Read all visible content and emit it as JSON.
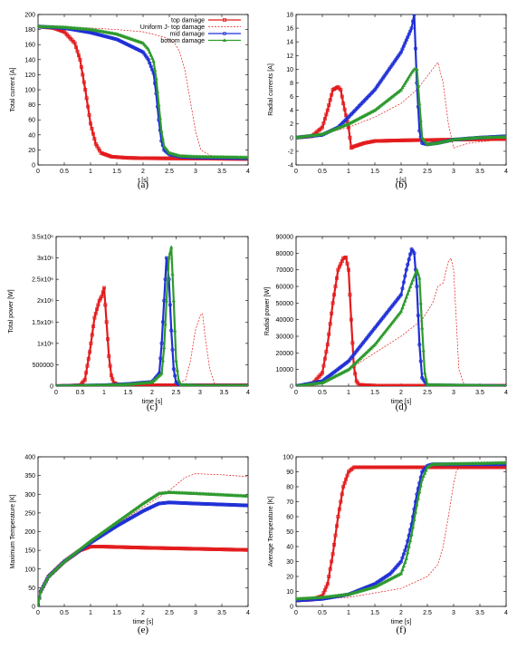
{
  "colors": {
    "top": "#e31a1c",
    "uniform": "#e31a1c",
    "mid": "#1f2fd6",
    "bottom": "#2e9a2e"
  },
  "legend": [
    {
      "key": "top",
      "label": "top damage",
      "style": "solid",
      "marker": "square"
    },
    {
      "key": "uniform",
      "label": "Uniform J- top damage",
      "style": "dashed",
      "marker": "none"
    },
    {
      "key": "mid",
      "label": "mid damage",
      "style": "solid",
      "marker": "circle"
    },
    {
      "key": "bottom",
      "label": "bottom damage",
      "style": "solid",
      "marker": "triangle"
    }
  ],
  "chart_data": [
    {
      "id": "a",
      "type": "line",
      "caption": "(a)",
      "xlabel": "t [s]",
      "ylabel": "Total current [A]",
      "xlim": [
        0,
        4
      ],
      "ylim": [
        0,
        200
      ],
      "xticks": [
        0,
        0.5,
        1,
        1.5,
        2,
        2.5,
        3,
        3.5,
        4
      ],
      "xtick_labels": [
        "0",
        "0.5",
        "1",
        "1.5",
        "2",
        "2.5",
        "3",
        "3.5",
        "4"
      ],
      "yticks": [
        0,
        20,
        40,
        60,
        80,
        100,
        120,
        140,
        160,
        180,
        200
      ],
      "ytick_labels": [
        "0",
        "20",
        "40",
        "60",
        "80",
        "100",
        "120",
        "140",
        "160",
        "180",
        "200"
      ],
      "legend_position": "top-right",
      "series": [
        {
          "key": "top",
          "x": [
            0,
            0.3,
            0.5,
            0.7,
            0.8,
            0.9,
            1.0,
            1.1,
            1.2,
            1.4,
            1.7,
            2.0,
            3.0,
            4.0
          ],
          "y": [
            184,
            182,
            177,
            162,
            140,
            100,
            55,
            28,
            16,
            11,
            9.5,
            9,
            8.5,
            8
          ]
        },
        {
          "key": "uniform",
          "x": [
            0,
            0.5,
            1,
            1.5,
            2,
            2.4,
            2.6,
            2.7,
            2.8,
            2.9,
            3.0,
            3.1,
            3.3,
            3.6,
            4.0
          ],
          "y": [
            184,
            183,
            182,
            180,
            177,
            170,
            162,
            150,
            125,
            85,
            45,
            20,
            12,
            10,
            9
          ]
        },
        {
          "key": "mid",
          "x": [
            0,
            0.5,
            1,
            1.5,
            2.0,
            2.1,
            2.2,
            2.25,
            2.3,
            2.35,
            2.4,
            2.5,
            2.7,
            3.0,
            4.0
          ],
          "y": [
            184,
            182,
            176,
            167,
            150,
            140,
            122,
            95,
            60,
            32,
            20,
            14,
            11,
            10,
            9
          ]
        },
        {
          "key": "bottom",
          "x": [
            0,
            0.5,
            1,
            1.5,
            2.0,
            2.1,
            2.2,
            2.25,
            2.3,
            2.35,
            2.4,
            2.5,
            2.7,
            3.0,
            4.0
          ],
          "y": [
            184,
            183,
            180,
            174,
            162,
            154,
            138,
            115,
            80,
            45,
            25,
            16,
            12,
            11,
            10
          ]
        }
      ]
    },
    {
      "id": "b",
      "type": "line",
      "caption": "(b)",
      "xlabel": "t [s]",
      "ylabel": "Radial currents [A]",
      "xlim": [
        0,
        4
      ],
      "ylim": [
        -4,
        18
      ],
      "xticks": [
        0,
        0.5,
        1,
        1.5,
        2,
        2.5,
        3,
        3.5,
        4
      ],
      "xtick_labels": [
        "0",
        "0.5",
        "1",
        "1.5",
        "2",
        "2.5",
        "3",
        "3.5",
        "4"
      ],
      "yticks": [
        -4,
        -2,
        0,
        2,
        4,
        6,
        8,
        10,
        12,
        14,
        16,
        18
      ],
      "ytick_labels": [
        "-4",
        "-2",
        "0",
        "2",
        "4",
        "6",
        "8",
        "10",
        "12",
        "14",
        "16",
        "18"
      ],
      "series": [
        {
          "key": "top",
          "x": [
            0,
            0.3,
            0.5,
            0.6,
            0.7,
            0.8,
            0.85,
            0.9,
            1.0,
            1.05,
            1.1,
            1.3,
            1.5,
            2,
            3,
            4
          ],
          "y": [
            0,
            0.2,
            1.5,
            4,
            7,
            7.4,
            7,
            5,
            1.5,
            -1.5,
            -1.3,
            -0.8,
            -0.5,
            -0.4,
            -0.3,
            -0.2
          ]
        },
        {
          "key": "uniform",
          "x": [
            0,
            0.5,
            1,
            1.5,
            2,
            2.3,
            2.5,
            2.7,
            2.8,
            2.9,
            3.0,
            3.3,
            4.0
          ],
          "y": [
            0,
            0.5,
            1.5,
            3,
            5,
            7,
            9,
            11,
            8,
            2,
            -1.5,
            -0.8,
            -0.2
          ]
        },
        {
          "key": "mid",
          "x": [
            0,
            0.5,
            0.8,
            1.0,
            1.5,
            2.0,
            2.2,
            2.25,
            2.3,
            2.35,
            2.4,
            2.5,
            2.7,
            3.0,
            3.5,
            4.0
          ],
          "y": [
            0,
            0.4,
            1.5,
            3,
            7,
            12.5,
            16,
            18,
            8,
            1,
            -0.8,
            -1,
            -0.8,
            -0.3,
            0,
            0.2
          ]
        },
        {
          "key": "bottom",
          "x": [
            0,
            0.5,
            1.0,
            1.5,
            2.0,
            2.2,
            2.25,
            2.3,
            2.35,
            2.4,
            2.5,
            2.7,
            3.0,
            3.5,
            4.0
          ],
          "y": [
            0,
            0.5,
            2,
            4,
            7,
            9.5,
            10,
            10,
            5,
            0,
            -1,
            -0.8,
            -0.3,
            0,
            0.1
          ]
        }
      ]
    },
    {
      "id": "c",
      "type": "line",
      "caption": "(c)",
      "xlabel": "time [s]",
      "ylabel": "Total power [W]",
      "xlim": [
        0,
        4
      ],
      "ylim": [
        0,
        3500000
      ],
      "xticks": [
        0,
        0.5,
        1,
        1.5,
        2,
        2.5,
        3,
        3.5,
        4
      ],
      "xtick_labels": [
        "0",
        "0.5",
        "1",
        "1.5",
        "2",
        "2.5",
        "3",
        "3.5",
        "4"
      ],
      "yticks": [
        0,
        500000,
        1000000,
        1500000,
        2000000,
        2500000,
        3000000,
        3500000
      ],
      "ytick_labels": [
        "0",
        "500000",
        "1x10⁶",
        "1.5x10⁶",
        "2x10⁶",
        "2.5x10⁶",
        "3x10⁶",
        "3.5x10⁶"
      ],
      "series": [
        {
          "key": "top",
          "x": [
            0,
            0.5,
            0.6,
            0.7,
            0.8,
            0.9,
            0.95,
            1.0,
            1.05,
            1.1,
            1.15,
            1.2,
            1.3,
            1.5,
            2,
            4
          ],
          "y": [
            0,
            20000,
            150000,
            800000,
            1600000,
            2000000,
            2100000,
            2300000,
            1500000,
            700000,
            250000,
            80000,
            30000,
            20000,
            20000,
            20000
          ]
        },
        {
          "key": "uniform",
          "x": [
            0,
            1.5,
            2.5,
            2.7,
            2.8,
            2.9,
            3.0,
            3.05,
            3.1,
            3.2,
            3.3,
            3.5,
            4.0
          ],
          "y": [
            0,
            10000,
            30000,
            150000,
            600000,
            1300000,
            1650000,
            1700000,
            1200000,
            400000,
            60000,
            20000,
            10000
          ]
        },
        {
          "key": "mid",
          "x": [
            0,
            1.0,
            1.5,
            2.0,
            2.15,
            2.2,
            2.25,
            2.3,
            2.35,
            2.4,
            2.45,
            2.5,
            2.6,
            3,
            4
          ],
          "y": [
            0,
            20000,
            50000,
            100000,
            300000,
            1000000,
            2000000,
            3000000,
            2500000,
            1300000,
            400000,
            80000,
            20000,
            10000,
            10000
          ]
        },
        {
          "key": "bottom",
          "x": [
            0,
            1.0,
            1.5,
            2.0,
            2.2,
            2.25,
            2.3,
            2.35,
            2.4,
            2.45,
            2.5,
            2.55,
            2.6,
            3,
            4
          ],
          "y": [
            0,
            20000,
            40000,
            90000,
            300000,
            900000,
            2000000,
            3000000,
            3250000,
            2000000,
            600000,
            150000,
            30000,
            10000,
            10000
          ]
        }
      ]
    },
    {
      "id": "d",
      "type": "line",
      "caption": "(d)",
      "xlabel": "time [s]",
      "ylabel": "Radial power [W]",
      "xlim": [
        0,
        4
      ],
      "ylim": [
        0,
        90000
      ],
      "xticks": [
        0,
        0.5,
        1,
        1.5,
        2,
        2.5,
        3,
        3.5,
        4
      ],
      "xtick_labels": [
        "0",
        "0.5",
        "1",
        "1.5",
        "2",
        "2.5",
        "3",
        "3.5",
        "4"
      ],
      "yticks": [
        0,
        10000,
        20000,
        30000,
        40000,
        50000,
        60000,
        70000,
        80000,
        90000
      ],
      "ytick_labels": [
        "0",
        "10000",
        "20000",
        "30000",
        "40000",
        "50000",
        "60000",
        "70000",
        "80000",
        "90000"
      ],
      "series": [
        {
          "key": "top",
          "x": [
            0,
            0.3,
            0.5,
            0.6,
            0.7,
            0.8,
            0.9,
            0.95,
            1.0,
            1.05,
            1.1,
            1.15,
            1.2,
            1.5,
            4
          ],
          "y": [
            0,
            1000,
            8000,
            25000,
            50000,
            70000,
            77000,
            77500,
            70000,
            40000,
            12000,
            3000,
            800,
            300,
            200
          ]
        },
        {
          "key": "uniform",
          "x": [
            0,
            0.5,
            1.0,
            1.5,
            2.0,
            2.4,
            2.6,
            2.7,
            2.8,
            2.9,
            2.95,
            3.0,
            3.05,
            3.1,
            3.2,
            4
          ],
          "y": [
            0,
            2000,
            10000,
            20000,
            30000,
            40000,
            50000,
            60000,
            62000,
            75000,
            77000,
            70000,
            40000,
            10000,
            1000,
            0
          ]
        },
        {
          "key": "mid",
          "x": [
            0,
            0.5,
            1.0,
            1.5,
            2.0,
            2.1,
            2.2,
            2.25,
            2.3,
            2.35,
            2.4,
            2.5,
            4
          ],
          "y": [
            0,
            3000,
            15000,
            35000,
            55000,
            70000,
            82500,
            80000,
            60000,
            25000,
            5000,
            500,
            0
          ]
        },
        {
          "key": "bottom",
          "x": [
            0,
            0.5,
            1.0,
            1.5,
            2.0,
            2.2,
            2.3,
            2.35,
            2.4,
            2.45,
            2.5,
            4
          ],
          "y": [
            0,
            2000,
            10000,
            25000,
            45000,
            62000,
            70000,
            65000,
            35000,
            8000,
            800,
            0
          ]
        }
      ]
    },
    {
      "id": "e",
      "type": "line",
      "caption": "(e)",
      "xlabel": "time [s]",
      "ylabel": "Maximum Temperature [K]",
      "xlim": [
        0,
        4
      ],
      "ylim": [
        0,
        400
      ],
      "xticks": [
        0,
        0.5,
        1,
        1.5,
        2,
        2.5,
        3,
        3.5,
        4
      ],
      "xtick_labels": [
        "0",
        "0.5",
        "1",
        "1.5",
        "2",
        "2.5",
        "3",
        "3.5",
        "4"
      ],
      "yticks": [
        0,
        50,
        100,
        150,
        200,
        250,
        300,
        350,
        400
      ],
      "ytick_labels": [
        "0",
        "50",
        "100",
        "150",
        "200",
        "250",
        "300",
        "350",
        "400"
      ],
      "series": [
        {
          "key": "top",
          "x": [
            0,
            0.05,
            0.2,
            0.5,
            0.8,
            1.0,
            1.2,
            2.0,
            3.0,
            4.0
          ],
          "y": [
            5,
            40,
            80,
            120,
            150,
            160,
            160,
            157,
            154,
            151
          ]
        },
        {
          "key": "uniform",
          "x": [
            0,
            0.05,
            0.2,
            0.5,
            1.0,
            1.5,
            2.0,
            2.5,
            2.8,
            3.0,
            3.5,
            4.0
          ],
          "y": [
            5,
            40,
            80,
            120,
            170,
            220,
            265,
            310,
            345,
            355,
            352,
            347
          ]
        },
        {
          "key": "mid",
          "x": [
            0,
            0.05,
            0.2,
            0.5,
            1.0,
            1.5,
            2.0,
            2.3,
            2.5,
            3.0,
            4.0
          ],
          "y": [
            5,
            40,
            80,
            120,
            170,
            215,
            255,
            275,
            278,
            275,
            270
          ]
        },
        {
          "key": "bottom",
          "x": [
            0,
            0.05,
            0.2,
            0.5,
            1.0,
            1.5,
            2.0,
            2.3,
            2.5,
            3.0,
            4.0
          ],
          "y": [
            5,
            40,
            80,
            120,
            175,
            225,
            275,
            302,
            305,
            302,
            295
          ]
        }
      ]
    },
    {
      "id": "f",
      "type": "line",
      "caption": "(f)",
      "xlabel": "time [s]",
      "ylabel": "Average Temperature [K]",
      "xlim": [
        0,
        4
      ],
      "ylim": [
        0,
        100
      ],
      "xticks": [
        0,
        0.5,
        1,
        1.5,
        2,
        2.5,
        3,
        3.5,
        4
      ],
      "xtick_labels": [
        "0",
        "0.5",
        "1",
        "1.5",
        "2",
        "2.5",
        "3",
        "3.5",
        "4"
      ],
      "yticks": [
        0,
        10,
        20,
        30,
        40,
        50,
        60,
        70,
        80,
        90,
        100
      ],
      "ytick_labels": [
        "0",
        "10",
        "20",
        "30",
        "40",
        "50",
        "60",
        "70",
        "80",
        "90",
        "100"
      ],
      "series": [
        {
          "key": "top",
          "x": [
            0,
            0.3,
            0.5,
            0.6,
            0.7,
            0.8,
            0.9,
            1.0,
            1.1,
            1.2,
            2.0,
            4.0
          ],
          "y": [
            4,
            4.5,
            7,
            15,
            35,
            60,
            80,
            90,
            93,
            93,
            93,
            93
          ]
        },
        {
          "key": "uniform",
          "x": [
            0,
            1,
            2,
            2.5,
            2.7,
            2.8,
            2.9,
            3.0,
            3.05,
            3.1,
            3.2,
            4.0
          ],
          "y": [
            4,
            6,
            12,
            20,
            28,
            40,
            60,
            82,
            90,
            93,
            94,
            94
          ]
        },
        {
          "key": "mid",
          "x": [
            0,
            0.5,
            1.0,
            1.5,
            1.8,
            2.0,
            2.1,
            2.2,
            2.3,
            2.4,
            2.5,
            2.6,
            4.0
          ],
          "y": [
            4,
            5,
            8,
            15,
            22,
            30,
            40,
            55,
            75,
            90,
            94,
            95,
            95
          ]
        },
        {
          "key": "bottom",
          "x": [
            0,
            0.5,
            1.0,
            1.5,
            2.0,
            2.1,
            2.2,
            2.3,
            2.4,
            2.5,
            2.6,
            4.0
          ],
          "y": [
            5,
            6,
            8,
            13,
            22,
            32,
            48,
            68,
            85,
            93,
            95,
            96
          ]
        }
      ]
    }
  ]
}
